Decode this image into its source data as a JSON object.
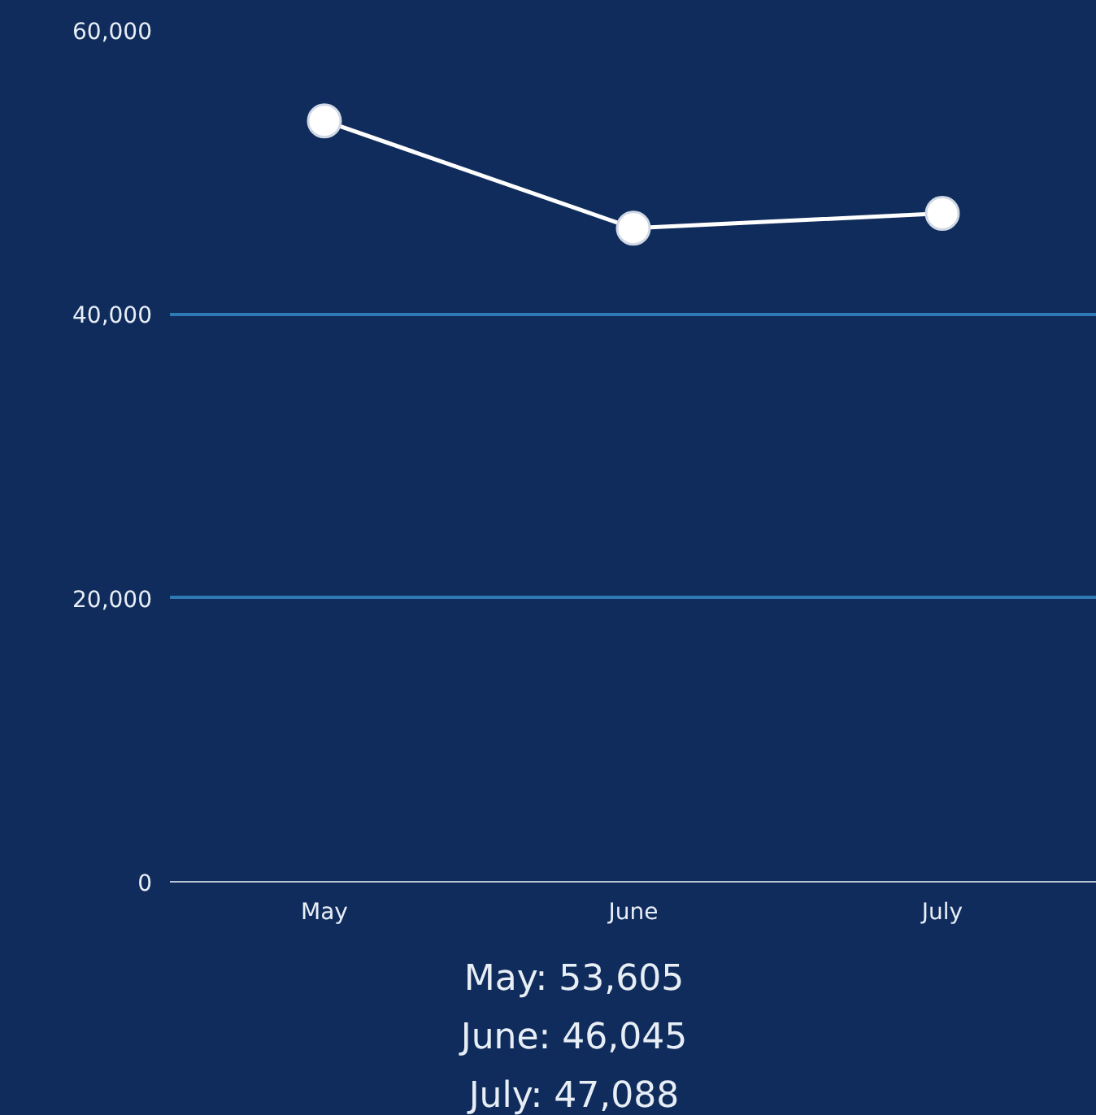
{
  "chart_data": {
    "type": "line",
    "categories": [
      "May",
      "June",
      "July"
    ],
    "series": [
      {
        "color": "#ffffff",
        "values": [
          53605,
          46045,
          47088
        ]
      }
    ],
    "ylim": [
      0,
      60000
    ],
    "yticks": [
      0,
      {
        "value": 20000,
        "label": "20,000"
      },
      {
        "value": 40000,
        "label": "40,000"
      },
      {
        "value": 60000,
        "label": "60,000"
      }
    ],
    "grid": "y",
    "marker": "circle",
    "line_style": "solid",
    "annotations": [
      "May: 53,605",
      "June: 46,045",
      "July: 47,088"
    ]
  }
}
